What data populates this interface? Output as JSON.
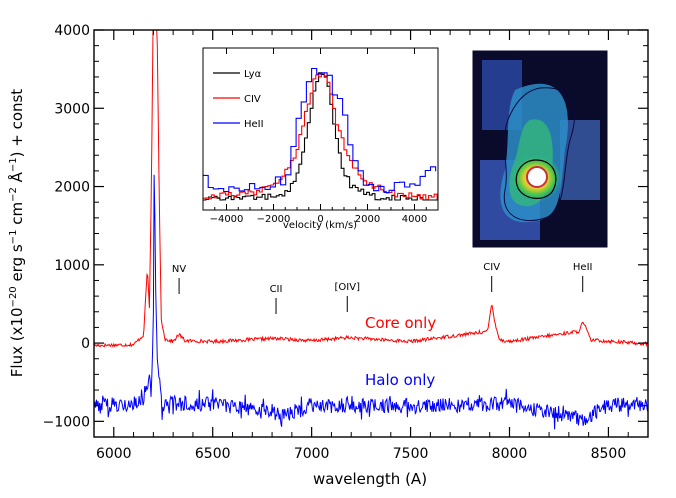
{
  "chart_data": [
    {
      "type": "line",
      "title": "",
      "xlabel": "wavelength (A)",
      "ylabel": "Flux (x10^-20 erg s^-1 cm^-2 A^-1) + const",
      "xlim": [
        5900,
        8700
      ],
      "ylim": [
        -1200,
        4000
      ],
      "xticks": [
        6000,
        6500,
        7000,
        7500,
        8000,
        8500
      ],
      "yticks": [
        -1000,
        0,
        1000,
        2000,
        3000,
        4000
      ],
      "series": [
        {
          "name": "Core only",
          "color": "#ff0000",
          "baseline": 0,
          "x": [
            5900,
            6100,
            6150,
            6170,
            6180,
            6190,
            6200,
            6210,
            6220,
            6230,
            6240,
            6260,
            6300,
            6330,
            6360,
            6500,
            6820,
            7000,
            7180,
            7500,
            7890,
            7910,
            7925,
            7950,
            8000,
            8350,
            8370,
            8385,
            8410,
            8700
          ],
          "y": [
            -30,
            -20,
            100,
            960,
            450,
            2000,
            4500,
            4500,
            3800,
            1800,
            300,
            50,
            20,
            110,
            30,
            20,
            60,
            30,
            70,
            20,
            150,
            510,
            280,
            40,
            20,
            150,
            260,
            200,
            40,
            -10
          ]
        },
        {
          "name": "Halo only",
          "color": "#0000ff",
          "baseline": -800,
          "x": [
            5900,
            6150,
            6170,
            6180,
            6190,
            6200,
            6205,
            6210,
            6220,
            6240,
            6300,
            6600,
            6850,
            7000,
            7500,
            8000,
            8370,
            8500,
            8700
          ],
          "y": [
            -800,
            -760,
            -560,
            -420,
            -700,
            380,
            2600,
            900,
            -200,
            -780,
            -770,
            -790,
            -930,
            -790,
            -800,
            -780,
            -980,
            -790,
            -770
          ]
        }
      ],
      "annotations": [
        "NV",
        "CII",
        "[OIV]",
        "CIV",
        "HeII"
      ],
      "annotation_x": [
        6330,
        6820,
        7180,
        7910,
        8370
      ],
      "legend": "none"
    },
    {
      "type": "line",
      "title": "",
      "xlabel": "velocity (km/s)",
      "ylabel": "",
      "xlim": [
        -5000,
        5000
      ],
      "xticks": [
        -4000,
        -2000,
        0,
        2000,
        4000
      ],
      "legend": "top-left",
      "series": [
        {
          "name": "Lyα",
          "color": "#000000",
          "x": [
            -5000,
            -2500,
            -1500,
            -1000,
            -600,
            -300,
            0,
            200,
            500,
            800,
            1200,
            2000,
            3000,
            5000
          ],
          "y": [
            0,
            0.02,
            0.05,
            0.2,
            0.55,
            0.85,
            1.0,
            0.95,
            0.6,
            0.3,
            0.12,
            0.03,
            0.02,
            0
          ]
        },
        {
          "name": "CIV",
          "color": "#ff0000",
          "x": [
            -5000,
            -3000,
            -2000,
            -1200,
            -700,
            -300,
            0,
            300,
            700,
            1200,
            2000,
            3000,
            5000
          ],
          "y": [
            0.02,
            0.05,
            0.12,
            0.3,
            0.65,
            0.95,
            0.98,
            0.88,
            0.55,
            0.3,
            0.12,
            0.05,
            0.02
          ]
        },
        {
          "name": "HeII",
          "color": "#0000ff",
          "x": [
            -5000,
            -4700,
            -4200,
            -3000,
            -1600,
            -1400,
            -900,
            -400,
            0,
            400,
            900,
            1400,
            1800,
            2500,
            3300,
            4100,
            4400,
            5000
          ],
          "y": [
            0.2,
            0.1,
            0.05,
            0.08,
            0.15,
            0.3,
            0.7,
            1.0,
            1.0,
            0.9,
            0.65,
            0.3,
            0.15,
            0.08,
            0.12,
            0.15,
            0.25,
            0.18
          ]
        }
      ]
    }
  ],
  "colors": {
    "core": "#ff0000",
    "halo": "#0000ff",
    "lya": "#000000"
  },
  "labels": {
    "core": "Core only",
    "halo": "Halo only"
  }
}
